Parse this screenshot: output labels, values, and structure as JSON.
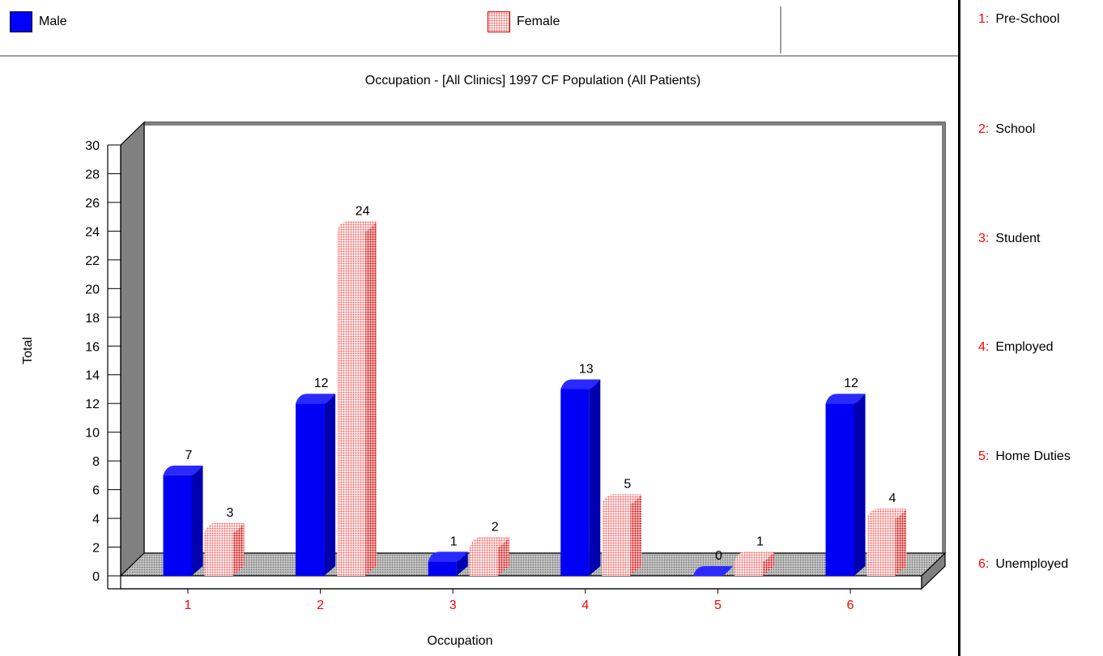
{
  "legend": {
    "male_label": "Male",
    "female_label": "Female"
  },
  "side_legend": [
    {
      "num": "1:",
      "label": "Pre-School"
    },
    {
      "num": "2:",
      "label": "School"
    },
    {
      "num": "3:",
      "label": "Student"
    },
    {
      "num": "4:",
      "label": "Employed"
    },
    {
      "num": "5:",
      "label": "Home Duties"
    },
    {
      "num": "6:",
      "label": "Unemployed"
    }
  ],
  "colors": {
    "male": "#0000ff",
    "female": "#ff5050",
    "category_label": "#ff0000"
  },
  "chart_data": {
    "type": "bar",
    "title": "Occupation - [All Clinics] 1997 CF Population  (All Patients)",
    "xlabel": "Occupation",
    "ylabel": "Total",
    "categories": [
      "1",
      "2",
      "3",
      "4",
      "5",
      "6"
    ],
    "series": [
      {
        "name": "Male",
        "values": [
          7,
          12,
          1,
          13,
          0,
          12
        ]
      },
      {
        "name": "Female",
        "values": [
          3,
          24,
          2,
          5,
          1,
          4
        ]
      }
    ],
    "ylim": [
      0,
      30
    ],
    "yticks": [
      0,
      2,
      4,
      6,
      8,
      10,
      12,
      14,
      16,
      18,
      20,
      22,
      24,
      26,
      28,
      30
    ],
    "grid": false,
    "legend_position": "top"
  }
}
